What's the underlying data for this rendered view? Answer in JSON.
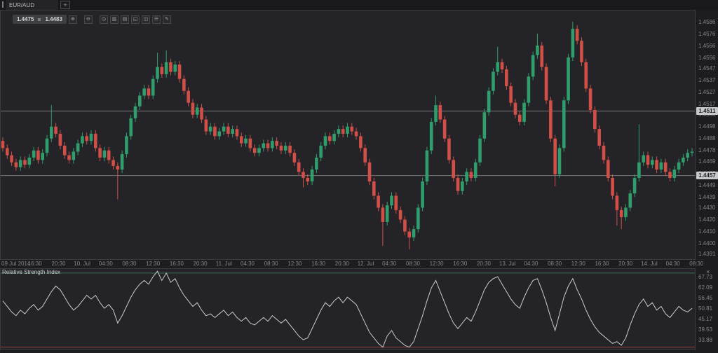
{
  "window": {
    "tabs": [
      {
        "label": "EUR/AUD",
        "active": true
      }
    ],
    "add_tab_label": "+"
  },
  "quote": {
    "bid": "1.4475",
    "ask": "1.4483"
  },
  "toolbar": {
    "buttons": [
      {
        "name": "zoom-in-button",
        "icon": "zoom-in-icon",
        "glyph": "⊕"
      },
      {
        "name": "zoom-out-button",
        "icon": "zoom-out-icon",
        "glyph": "⊖",
        "gap": true
      },
      {
        "name": "timeframe-button",
        "icon": "clock-icon",
        "glyph": "◷",
        "gap": true
      },
      {
        "name": "chart-type-button",
        "icon": "bars-icon",
        "glyph": "▥"
      },
      {
        "name": "indicators-button",
        "icon": "list-icon",
        "glyph": "▤"
      },
      {
        "name": "expand-button",
        "icon": "expand-icon",
        "glyph": "◱"
      },
      {
        "name": "templates-button",
        "icon": "template-icon",
        "glyph": "◫"
      },
      {
        "name": "menu-button",
        "icon": "menu-icon",
        "glyph": "☰"
      },
      {
        "name": "draw-button",
        "icon": "pencil-icon",
        "glyph": "✎"
      }
    ]
  },
  "colors": {
    "background": "#1d1d20",
    "plot_background": "#242428",
    "border": "#3a3b3e",
    "candle_up": "#2f9e6c",
    "candle_down": "#d14f47",
    "axis_text": "#85878b",
    "marker_background": "#c8c9cb",
    "rsi_line": "#c9cbce",
    "rsi_upper_level": "#3e6f50",
    "rsi_lower_level": "#8e4240",
    "price_line": "#9b9ca0"
  },
  "chart_data": [
    {
      "type": "candlestick",
      "symbol": "EUR/AUD",
      "grid": false,
      "price_scale": 0.0001,
      "ylim": [
        1.4388,
        1.4596
      ],
      "y_axis_labels": [
        "1.4586",
        "1.4576",
        "1.4566",
        "1.4556",
        "1.4547",
        "1.4537",
        "1.4527",
        "1.4517",
        "1.4508",
        "1.4498",
        "1.4488",
        "1.4478",
        "1.4469",
        "1.4459",
        "1.4449",
        "1.4439",
        "1.4430",
        "1.4420",
        "1.4410",
        "1.4400",
        "1.4391"
      ],
      "price_markers": [
        {
          "label": "1.4511",
          "price": 1.4511
        },
        {
          "label": "1.4457",
          "price": 1.4457
        }
      ],
      "x_axis_labels": [
        "09 Jul 2014",
        "16:30",
        "20:30",
        "10. Jul",
        "04:30",
        "08:30",
        "12:30",
        "16:30",
        "20:30",
        "11. Jul",
        "04:30",
        "08:30",
        "12:30",
        "16:30",
        "20:30",
        "12. Jul",
        "04:30",
        "08:30",
        "12:30",
        "16:30",
        "20:30",
        "13. Jul",
        "04:30",
        "08:30",
        "12:30",
        "16:30",
        "20:30",
        "14. Jul",
        "04:30",
        "08:30"
      ],
      "candles": [
        [
          14486,
          14489,
          14477,
          14480
        ],
        [
          14480,
          14483,
          14471,
          14474
        ],
        [
          14474,
          14477,
          14465,
          14468
        ],
        [
          14468,
          14471,
          14461,
          14464
        ],
        [
          14464,
          14473,
          14461,
          14470
        ],
        [
          14470,
          14473,
          14463,
          14466
        ],
        [
          14466,
          14475,
          14463,
          14472
        ],
        [
          14472,
          14481,
          14469,
          14478
        ],
        [
          14478,
          14481,
          14467,
          14470
        ],
        [
          14470,
          14479,
          14467,
          14476
        ],
        [
          14476,
          14491,
          14473,
          14488
        ],
        [
          14488,
          14516,
          14485,
          14498
        ],
        [
          14498,
          14501,
          14489,
          14492
        ],
        [
          14492,
          14495,
          14479,
          14482
        ],
        [
          14482,
          14485,
          14471,
          14474
        ],
        [
          14474,
          14477,
          14467,
          14470
        ],
        [
          14470,
          14480,
          14467,
          14477
        ],
        [
          14477,
          14487,
          14474,
          14484
        ],
        [
          14484,
          14493,
          14481,
          14490
        ],
        [
          14490,
          14493,
          14483,
          14486
        ],
        [
          14486,
          14495,
          14483,
          14492
        ],
        [
          14492,
          14495,
          14477,
          14480
        ],
        [
          14480,
          14483,
          14469,
          14472
        ],
        [
          14472,
          14481,
          14469,
          14478
        ],
        [
          14478,
          14481,
          14467,
          14470
        ],
        [
          14470,
          14473,
          14462,
          14465
        ],
        [
          14465,
          14468,
          14437,
          14462
        ],
        [
          14462,
          14478,
          14459,
          14475
        ],
        [
          14475,
          14493,
          14472,
          14490
        ],
        [
          14490,
          14508,
          14487,
          14505
        ],
        [
          14505,
          14518,
          14502,
          14515
        ],
        [
          14515,
          14527,
          14512,
          14524
        ],
        [
          14524,
          14533,
          14521,
          14530
        ],
        [
          14530,
          14533,
          14521,
          14524
        ],
        [
          14524,
          14541,
          14521,
          14538
        ],
        [
          14538,
          14560,
          14535,
          14548
        ],
        [
          14548,
          14551,
          14539,
          14542
        ],
        [
          14542,
          14562,
          14539,
          14552
        ],
        [
          14552,
          14555,
          14541,
          14544
        ],
        [
          14544,
          14553,
          14541,
          14550
        ],
        [
          14550,
          14553,
          14535,
          14538
        ],
        [
          14538,
          14541,
          14525,
          14528
        ],
        [
          14528,
          14531,
          14515,
          14518
        ],
        [
          14518,
          14521,
          14505,
          14508
        ],
        [
          14508,
          14517,
          14505,
          14514
        ],
        [
          14514,
          14517,
          14501,
          14504
        ],
        [
          14504,
          14507,
          14491,
          14494
        ],
        [
          14494,
          14501,
          14491,
          14498
        ],
        [
          14498,
          14501,
          14487,
          14490
        ],
        [
          14490,
          14497,
          14487,
          14494
        ],
        [
          14494,
          14501,
          14491,
          14498
        ],
        [
          14498,
          14501,
          14489,
          14492
        ],
        [
          14492,
          14499,
          14489,
          14496
        ],
        [
          14496,
          14499,
          14487,
          14490
        ],
        [
          14490,
          14493,
          14481,
          14484
        ],
        [
          14484,
          14491,
          14481,
          14488
        ],
        [
          14488,
          14491,
          14477,
          14480
        ],
        [
          14480,
          14483,
          14473,
          14476
        ],
        [
          14476,
          14483,
          14473,
          14480
        ],
        [
          14480,
          14487,
          14477,
          14484
        ],
        [
          14484,
          14487,
          14477,
          14480
        ],
        [
          14480,
          14489,
          14477,
          14486
        ],
        [
          14486,
          14489,
          14479,
          14482
        ],
        [
          14482,
          14485,
          14475,
          14478
        ],
        [
          14478,
          14485,
          14475,
          14482
        ],
        [
          14482,
          14485,
          14473,
          14476
        ],
        [
          14476,
          14479,
          14465,
          14468
        ],
        [
          14468,
          14471,
          14457,
          14460
        ],
        [
          14460,
          14463,
          14447,
          14455
        ],
        [
          14455,
          14458,
          14449,
          14452
        ],
        [
          14452,
          14465,
          14449,
          14462
        ],
        [
          14462,
          14475,
          14459,
          14472
        ],
        [
          14472,
          14485,
          14469,
          14482
        ],
        [
          14482,
          14493,
          14479,
          14490
        ],
        [
          14490,
          14493,
          14483,
          14486
        ],
        [
          14486,
          14495,
          14483,
          14492
        ],
        [
          14492,
          14499,
          14489,
          14496
        ],
        [
          14496,
          14499,
          14489,
          14492
        ],
        [
          14492,
          14501,
          14489,
          14498
        ],
        [
          14498,
          14501,
          14491,
          14494
        ],
        [
          14494,
          14497,
          14487,
          14490
        ],
        [
          14490,
          14493,
          14477,
          14480
        ],
        [
          14480,
          14483,
          14465,
          14468
        ],
        [
          14468,
          14471,
          14449,
          14452
        ],
        [
          14452,
          14455,
          14437,
          14440
        ],
        [
          14440,
          14443,
          14427,
          14430
        ],
        [
          14430,
          14433,
          14398,
          14418
        ],
        [
          14418,
          14435,
          14415,
          14432
        ],
        [
          14432,
          14443,
          14429,
          14440
        ],
        [
          14440,
          14443,
          14425,
          14428
        ],
        [
          14428,
          14431,
          14417,
          14420
        ],
        [
          14420,
          14423,
          14407,
          14410
        ],
        [
          14410,
          14413,
          14395,
          14405
        ],
        [
          14405,
          14415,
          14402,
          14412
        ],
        [
          14412,
          14433,
          14409,
          14430
        ],
        [
          14430,
          14455,
          14427,
          14452
        ],
        [
          14452,
          14481,
          14449,
          14478
        ],
        [
          14478,
          14505,
          14475,
          14502
        ],
        [
          14502,
          14524,
          14499,
          14516
        ],
        [
          14516,
          14519,
          14501,
          14504
        ],
        [
          14504,
          14507,
          14485,
          14488
        ],
        [
          14488,
          14491,
          14467,
          14470
        ],
        [
          14470,
          14473,
          14452,
          14455
        ],
        [
          14455,
          14458,
          14441,
          14444
        ],
        [
          14444,
          14455,
          14441,
          14452
        ],
        [
          14452,
          14463,
          14449,
          14460
        ],
        [
          14460,
          14463,
          14452,
          14455
        ],
        [
          14455,
          14471,
          14452,
          14468
        ],
        [
          14468,
          14491,
          14465,
          14488
        ],
        [
          14488,
          14513,
          14485,
          14510
        ],
        [
          14510,
          14531,
          14507,
          14528
        ],
        [
          14528,
          14547,
          14525,
          14544
        ],
        [
          14544,
          14565,
          14541,
          14552
        ],
        [
          14552,
          14555,
          14543,
          14546
        ],
        [
          14546,
          14549,
          14529,
          14532
        ],
        [
          14532,
          14535,
          14515,
          14518
        ],
        [
          14518,
          14521,
          14505,
          14508
        ],
        [
          14508,
          14511,
          14499,
          14502
        ],
        [
          14502,
          14521,
          14499,
          14518
        ],
        [
          14518,
          14543,
          14515,
          14540
        ],
        [
          14540,
          14561,
          14537,
          14558
        ],
        [
          14558,
          14576,
          14555,
          14566
        ],
        [
          14566,
          14569,
          14545,
          14548
        ],
        [
          14548,
          14551,
          14517,
          14520
        ],
        [
          14520,
          14523,
          14485,
          14488
        ],
        [
          14488,
          14491,
          14448,
          14458
        ],
        [
          14458,
          14483,
          14455,
          14480
        ],
        [
          14480,
          14523,
          14477,
          14520
        ],
        [
          14520,
          14559,
          14517,
          14556
        ],
        [
          14556,
          14586,
          14553,
          14580
        ],
        [
          14580,
          14583,
          14567,
          14570
        ],
        [
          14570,
          14573,
          14549,
          14552
        ],
        [
          14552,
          14555,
          14527,
          14530
        ],
        [
          14530,
          14533,
          14509,
          14512
        ],
        [
          14512,
          14515,
          14493,
          14496
        ],
        [
          14496,
          14499,
          14479,
          14482
        ],
        [
          14482,
          14485,
          14467,
          14470
        ],
        [
          14470,
          14473,
          14452,
          14455
        ],
        [
          14455,
          14458,
          14437,
          14440
        ],
        [
          14440,
          14443,
          14415,
          14428
        ],
        [
          14428,
          14431,
          14412,
          14422
        ],
        [
          14422,
          14433,
          14419,
          14430
        ],
        [
          14430,
          14445,
          14427,
          14442
        ],
        [
          14442,
          14458,
          14439,
          14455
        ],
        [
          14455,
          14500,
          14452,
          14468
        ],
        [
          14468,
          14477,
          14465,
          14474
        ],
        [
          14474,
          14477,
          14463,
          14466
        ],
        [
          14466,
          14473,
          14463,
          14470
        ],
        [
          14470,
          14473,
          14459,
          14462
        ],
        [
          14462,
          14471,
          14459,
          14468
        ],
        [
          14468,
          14471,
          14457,
          14460
        ],
        [
          14460,
          14463,
          14452,
          14455
        ],
        [
          14455,
          14465,
          14452,
          14462
        ],
        [
          14462,
          14471,
          14459,
          14468
        ],
        [
          14468,
          14475,
          14465,
          14472
        ],
        [
          14472,
          14479,
          14469,
          14476
        ],
        [
          14476,
          14480,
          14473,
          14477
        ]
      ],
      "up_color": "#2f9e6c",
      "down_color": "#d14f47"
    },
    {
      "type": "line",
      "title": "Relative Strength Index",
      "close_label": "×",
      "grid": false,
      "ylim": [
        29.5,
        72.6
      ],
      "y_axis_labels": [
        "67.73",
        "62.09",
        "56.45",
        "50.81",
        "45.17",
        "39.53",
        "33.88"
      ],
      "levels": [
        {
          "value": 70,
          "color": "#3e6f50"
        },
        {
          "value": 30,
          "color": "#8e4240"
        }
      ],
      "line_color": "#c9cbce",
      "values": [
        55,
        52,
        49,
        47,
        50,
        48,
        51,
        53,
        50,
        52,
        56,
        60,
        63,
        61,
        57,
        53,
        50,
        52,
        55,
        58,
        56,
        58,
        54,
        51,
        53,
        50,
        43,
        47,
        52,
        57,
        61,
        64,
        66,
        64,
        68,
        71,
        66,
        70,
        65,
        67,
        62,
        58,
        55,
        52,
        54,
        50,
        47,
        48,
        46,
        48,
        50,
        47,
        49,
        46,
        44,
        46,
        43,
        42,
        44,
        46,
        44,
        47,
        45,
        43,
        45,
        42,
        39,
        36,
        34,
        35,
        40,
        45,
        50,
        54,
        52,
        55,
        57,
        54,
        57,
        55,
        53,
        48,
        43,
        38,
        35,
        32,
        30,
        36,
        39,
        35,
        33,
        31,
        30,
        33,
        40,
        47,
        55,
        62,
        66,
        60,
        54,
        48,
        43,
        40,
        43,
        46,
        44,
        49,
        55,
        61,
        65,
        67,
        68,
        64,
        60,
        56,
        53,
        51,
        57,
        62,
        66,
        67,
        61,
        54,
        46,
        39,
        48,
        57,
        63,
        67,
        61,
        56,
        50,
        45,
        41,
        38,
        36,
        34,
        32,
        33,
        31,
        35,
        42,
        48,
        53,
        56,
        52,
        54,
        50,
        52,
        48,
        46,
        49,
        52,
        50,
        49,
        51
      ]
    }
  ]
}
